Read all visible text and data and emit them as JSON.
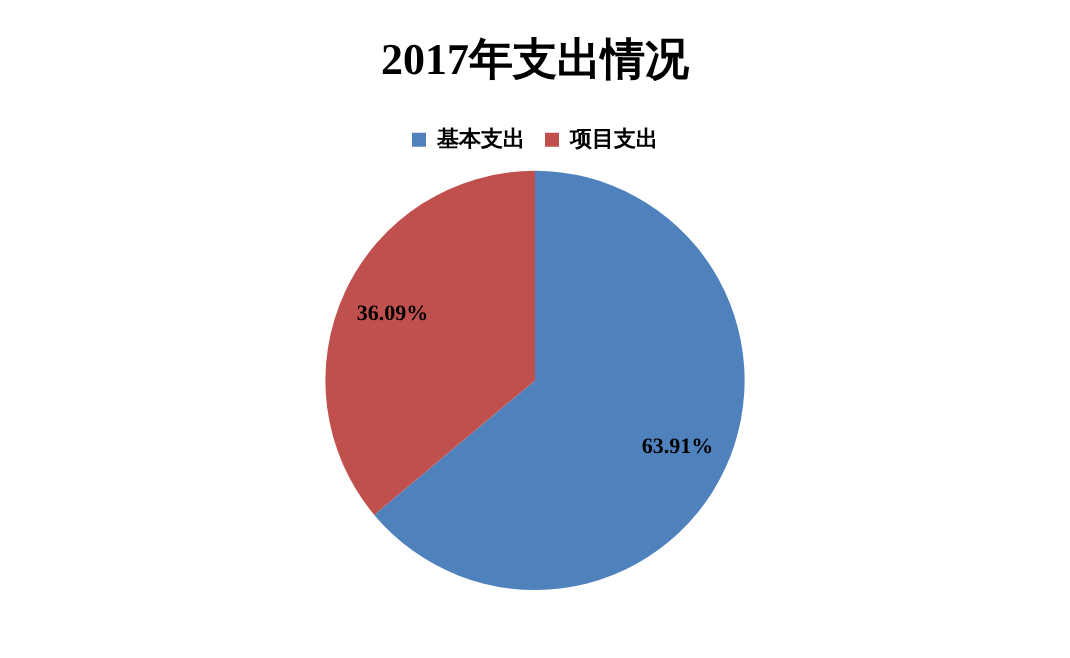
{
  "chart_data": {
    "type": "pie",
    "title": "2017年支出情况",
    "categories": [
      "基本支出",
      "项目支出"
    ],
    "values": [
      63.91,
      36.09
    ],
    "colors": [
      "#4f81bd",
      "#c0504d"
    ],
    "value_labels": [
      "63.91%",
      "36.09%"
    ],
    "legend": "top"
  }
}
